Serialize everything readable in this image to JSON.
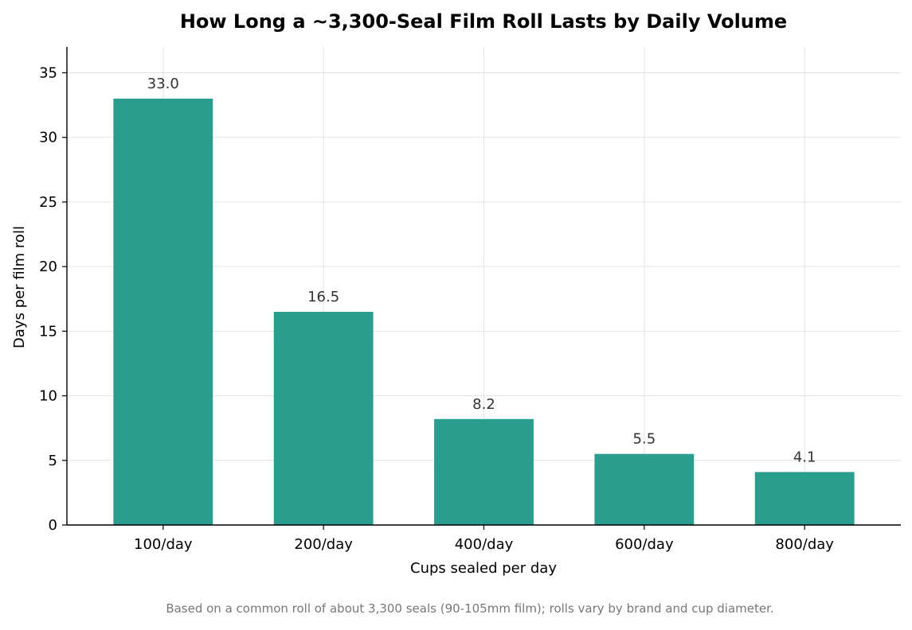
{
  "chart_data": {
    "type": "bar",
    "title": "How Long a ~3,300-Seal Film Roll Lasts by Daily Volume",
    "xlabel": "Cups sealed per day",
    "ylabel": "Days per film roll",
    "categories": [
      "100/day",
      "200/day",
      "400/day",
      "600/day",
      "800/day"
    ],
    "values": [
      33.0,
      16.5,
      8.2,
      5.5,
      4.1
    ],
    "value_labels": [
      "33.0",
      "16.5",
      "8.2",
      "5.5",
      "4.1"
    ],
    "ylim": [
      0,
      37
    ],
    "yticks": [
      0,
      5,
      10,
      15,
      20,
      25,
      30,
      35
    ],
    "grid": true,
    "legend": "none",
    "bar_color": "#2a9d8f",
    "footnote": "Based on a common roll of about 3,300 seals (90-105mm film); rolls vary by brand and cup diameter."
  }
}
